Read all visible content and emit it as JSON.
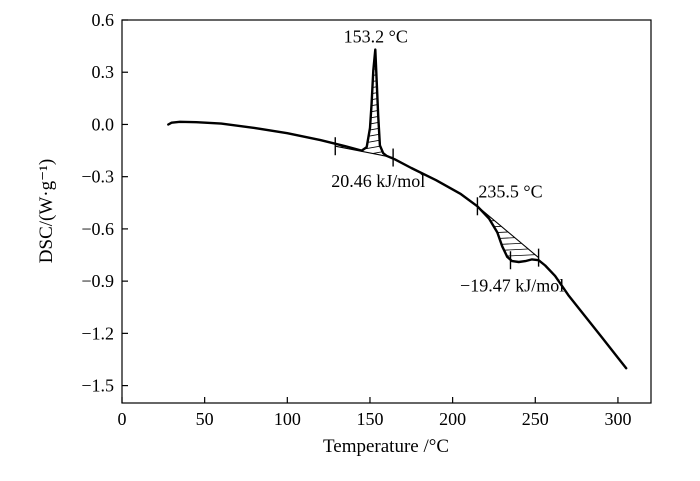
{
  "chart_data": {
    "type": "line",
    "title": "",
    "xlabel": "Temperature /°C",
    "ylabel": "DSC/(W·g⁻¹)",
    "xlim": [
      0,
      320
    ],
    "ylim": [
      -1.6,
      0.6
    ],
    "xticks": [
      0,
      50,
      100,
      150,
      200,
      250,
      300
    ],
    "yticks": [
      0.6,
      0.3,
      0.0,
      -0.3,
      -0.6,
      -0.9,
      -1.2,
      -1.5
    ],
    "xtick_labels": [
      "0",
      "50",
      "100",
      "150",
      "200",
      "250",
      "300"
    ],
    "ytick_labels": [
      "0.6",
      "0.3",
      "0.0",
      "−0.3",
      "−0.6",
      "−0.9",
      "−1.2",
      "−1.5"
    ],
    "grid": false,
    "series": [
      {
        "x": [
          28,
          30,
          35,
          45,
          60,
          80,
          100,
          120,
          135,
          145,
          148,
          150,
          151,
          152,
          153.2,
          154,
          155,
          156,
          158,
          160,
          165,
          175,
          190,
          205,
          215,
          222,
          227,
          230,
          233,
          236,
          240,
          244,
          248,
          252,
          256,
          262,
          270,
          280,
          290,
          300,
          305
        ],
        "y": [
          0.0,
          0.01,
          0.015,
          0.013,
          0.005,
          -0.02,
          -0.05,
          -0.09,
          -0.125,
          -0.15,
          -0.13,
          -0.02,
          0.12,
          0.31,
          0.43,
          0.26,
          0.05,
          -0.12,
          -0.165,
          -0.18,
          -0.2,
          -0.25,
          -0.32,
          -0.4,
          -0.47,
          -0.54,
          -0.62,
          -0.7,
          -0.76,
          -0.785,
          -0.79,
          -0.785,
          -0.775,
          -0.78,
          -0.81,
          -0.87,
          -0.98,
          -1.1,
          -1.22,
          -1.34,
          -1.4
        ]
      }
    ],
    "baselines": [
      {
        "x": [
          129,
          164
        ],
        "y": [
          -0.125,
          -0.19
        ]
      },
      {
        "x": [
          215,
          252
        ],
        "y": [
          -0.47,
          -0.765
        ]
      }
    ],
    "markers": [
      {
        "x": 129,
        "y": -0.125
      },
      {
        "x": 164,
        "y": -0.19
      },
      {
        "x": 215,
        "y": -0.47
      },
      {
        "x": 235,
        "y": -0.78
      },
      {
        "x": 252,
        "y": -0.765
      }
    ],
    "annotations": [
      {
        "text": "153.2 °C",
        "x": 153.5,
        "y": 0.47
      },
      {
        "text": "20.46 kJ/mol",
        "x": 155,
        "y": -0.36
      },
      {
        "text": "235.5 °C",
        "x": 235,
        "y": -0.42
      },
      {
        "text": "−19.47 kJ/mol",
        "x": 236,
        "y": -0.96
      }
    ]
  }
}
